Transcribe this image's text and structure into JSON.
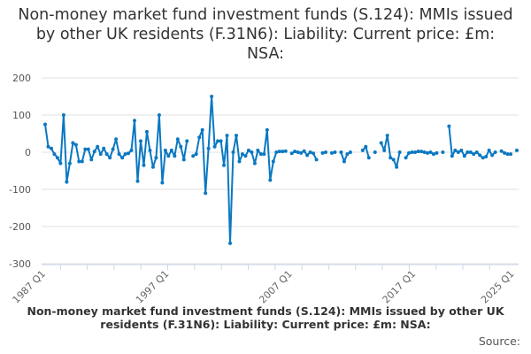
{
  "chart_data": {
    "type": "line",
    "title": "Non-money market fund investment funds (S.124): MMIs issued by other UK residents (F.31N6): Liability: Current price: £m: NSA:",
    "series_label": "Non-money market fund investment funds (S.124): MMIs issued by other UK residents (F.31N6): Liability: Current price: £m: NSA:",
    "source": "Source:",
    "x_start": "1987 Q1",
    "x_end": "2025 Q1",
    "x_ticks": [
      "1987 Q1",
      "1997 Q1",
      "2007 Q1",
      "2017 Q1",
      "2025 Q1"
    ],
    "y_ticks": [
      200,
      100,
      0,
      -100,
      -200,
      -300
    ],
    "ylim": [
      -300,
      200
    ],
    "grid": true,
    "color": "#0a78c2",
    "series": [
      {
        "values": [
          75,
          15,
          10,
          -5,
          -15,
          -30,
          100,
          -80,
          -30,
          25,
          20,
          -25,
          -25,
          8,
          8,
          -20,
          2,
          15,
          -5,
          10,
          -5,
          -15,
          8,
          35,
          -5,
          -15,
          -5,
          -3,
          5,
          85,
          -78,
          30,
          -35,
          55,
          5,
          -40,
          -15,
          100,
          -82,
          5,
          -10,
          5,
          -10,
          35,
          15,
          -20,
          30,
          null,
          -10,
          -5,
          40,
          60,
          -110,
          10,
          150,
          15,
          30,
          30,
          -35,
          45,
          -245,
          0,
          45,
          -25,
          -5,
          -10,
          5,
          0,
          -30,
          5,
          -5,
          -5,
          60,
          -75,
          -25,
          0,
          2,
          2,
          3,
          null,
          -3,
          2,
          0,
          -2,
          3,
          -8,
          0,
          -3,
          -20,
          null,
          -2,
          0,
          null,
          -2,
          0,
          null,
          0,
          -25,
          -5,
          0,
          null,
          null,
          null,
          5,
          15,
          -15,
          null,
          0,
          null,
          25,
          5,
          45,
          -15,
          -20,
          -40,
          0,
          null,
          -15,
          -2,
          0,
          0,
          2,
          2,
          0,
          -2,
          0,
          -5,
          -2,
          null,
          0,
          null,
          70,
          -10,
          5,
          0,
          5,
          -10,
          0,
          0,
          -5,
          0,
          -8,
          -15,
          -12,
          5,
          -8,
          0,
          null,
          3,
          -2,
          -5,
          -5,
          null,
          5
        ]
      }
    ]
  }
}
